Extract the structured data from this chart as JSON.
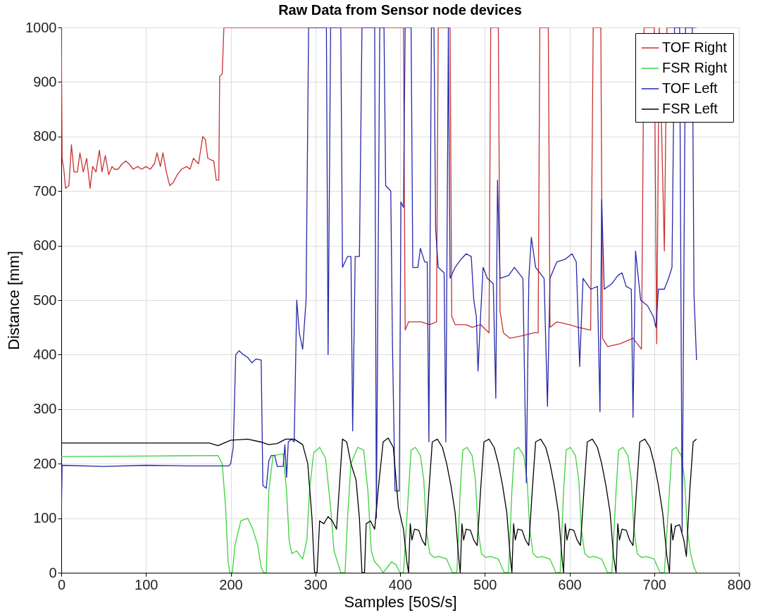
{
  "chart_data": {
    "type": "line",
    "title": "Raw Data from Sensor node devices",
    "xlabel": "Samples [50S/s]",
    "ylabel": "Distance [mm]",
    "xlim": [
      0,
      800
    ],
    "ylim": [
      0,
      1000
    ],
    "xticks": [
      0,
      100,
      200,
      300,
      400,
      500,
      600,
      700,
      800
    ],
    "yticks": [
      0,
      100,
      200,
      300,
      400,
      500,
      600,
      700,
      800,
      900,
      1000
    ],
    "grid": true,
    "legend": "top right",
    "marker": "none",
    "line_style": "solid",
    "series": [
      {
        "name": "TOF Right",
        "color": "#c83232",
        "x": [
          0,
          1,
          3,
          5,
          9,
          12,
          15,
          19,
          22,
          26,
          30,
          34,
          37,
          41,
          45,
          48,
          52,
          56,
          60,
          63,
          67,
          72,
          76,
          80,
          85,
          90,
          95,
          100,
          105,
          110,
          113,
          117,
          120,
          124,
          128,
          132,
          137,
          142,
          148,
          152,
          156,
          162,
          167,
          170,
          173,
          180,
          183,
          186,
          187,
          190,
          192,
          404,
          406,
          410,
          425,
          435,
          443,
          445,
          459,
          461,
          465,
          478,
          485,
          495,
          505,
          507,
          516,
          518,
          522,
          530,
          545,
          558,
          563,
          565,
          575,
          577,
          585,
          600,
          610,
          625,
          628,
          637,
          639,
          645,
          660,
          675,
          685,
          688,
          700,
          703,
          706,
          712,
          715,
          750
        ],
        "values": [
          1000,
          760,
          740,
          705,
          710,
          785,
          735,
          735,
          770,
          735,
          760,
          705,
          745,
          735,
          775,
          735,
          765,
          730,
          745,
          740,
          740,
          750,
          755,
          750,
          740,
          745,
          740,
          745,
          740,
          750,
          770,
          745,
          770,
          735,
          710,
          715,
          730,
          740,
          745,
          740,
          760,
          750,
          800,
          795,
          760,
          755,
          720,
          720,
          910,
          915,
          1000,
          1000,
          445,
          460,
          460,
          455,
          460,
          1000,
          1000,
          470,
          455,
          455,
          450,
          455,
          440,
          1000,
          1000,
          480,
          440,
          430,
          435,
          440,
          440,
          1000,
          1000,
          450,
          460,
          455,
          450,
          445,
          1000,
          1000,
          430,
          415,
          420,
          430,
          410,
          1000,
          1000,
          420,
          1000,
          590,
          1000,
          1000
        ]
      },
      {
        "name": "FSR Right",
        "color": "#3cd23c",
        "x": [
          0,
          100,
          185,
          190,
          194,
          197,
          199,
          202,
          205,
          212,
          220,
          226,
          232,
          236,
          239,
          242,
          245,
          250,
          262,
          266,
          269,
          272,
          278,
          285,
          290,
          293,
          298,
          305,
          312,
          318,
          322,
          326,
          330,
          335,
          338,
          342,
          350,
          357,
          362,
          366,
          370,
          376,
          380,
          385,
          390,
          395,
          400,
          404,
          410,
          413,
          418,
          424,
          428,
          431,
          435,
          440,
          446,
          455,
          462,
          467,
          471,
          474,
          479,
          485,
          489,
          492,
          496,
          501,
          507,
          516,
          523,
          528,
          532,
          535,
          540,
          546,
          550,
          553,
          557,
          562,
          568,
          577,
          584,
          589,
          593,
          596,
          601,
          607,
          611,
          614,
          618,
          623,
          629,
          638,
          645,
          650,
          655,
          658,
          663,
          669,
          673,
          676,
          680,
          685,
          691,
          700,
          707,
          712,
          718,
          721,
          726,
          732,
          736,
          739,
          743,
          747,
          750
        ],
        "values": [
          213,
          214,
          215,
          200,
          120,
          20,
          0,
          0,
          50,
          95,
          100,
          80,
          50,
          10,
          0,
          0,
          150,
          215,
          218,
          150,
          60,
          35,
          40,
          25,
          60,
          150,
          220,
          230,
          210,
          120,
          40,
          20,
          0,
          0,
          100,
          200,
          230,
          225,
          150,
          40,
          20,
          10,
          0,
          10,
          20,
          15,
          0,
          0,
          150,
          225,
          230,
          215,
          170,
          80,
          35,
          28,
          30,
          25,
          0,
          0,
          150,
          225,
          230,
          215,
          170,
          80,
          35,
          28,
          30,
          25,
          0,
          0,
          150,
          225,
          230,
          215,
          170,
          80,
          35,
          28,
          30,
          25,
          0,
          0,
          150,
          225,
          230,
          215,
          170,
          80,
          35,
          28,
          30,
          25,
          0,
          0,
          150,
          225,
          230,
          215,
          170,
          80,
          35,
          28,
          30,
          25,
          0,
          0,
          150,
          225,
          230,
          215,
          170,
          80,
          35,
          10,
          0
        ]
      },
      {
        "name": "TOF Left",
        "color": "#2828aa",
        "x": [
          0,
          1,
          50,
          100,
          150,
          198,
          200,
          203,
          206,
          210,
          215,
          220,
          225,
          230,
          236,
          238,
          242,
          245,
          248,
          252,
          255,
          262,
          264,
          266,
          268,
          272,
          275,
          278,
          281,
          285,
          289,
          292,
          313,
          315,
          318,
          330,
          332,
          338,
          342,
          344,
          347,
          352,
          355,
          370,
          372,
          376,
          381,
          383,
          389,
          391,
          394,
          399,
          401,
          404,
          406,
          413,
          415,
          421,
          424,
          429,
          432,
          434,
          437,
          440,
          442,
          445,
          452,
          454,
          457,
          459,
          465,
          472,
          478,
          484,
          487,
          490,
          492,
          495,
          498,
          503,
          510,
          513,
          515,
          518,
          528,
          535,
          545,
          549,
          552,
          555,
          560,
          570,
          574,
          577,
          585,
          595,
          603,
          608,
          612,
          616,
          625,
          633,
          636,
          638,
          641,
          650,
          657,
          662,
          667,
          673,
          675,
          678,
          684,
          692,
          699,
          702,
          705,
          712,
          717,
          721,
          724,
          730,
          733,
          737,
          745,
          747,
          750
        ],
        "values": [
          100,
          197,
          195,
          197,
          196,
          196,
          200,
          230,
          400,
          407,
          400,
          395,
          385,
          392,
          390,
          160,
          155,
          205,
          215,
          215,
          195,
          195,
          235,
          175,
          240,
          245,
          240,
          500,
          440,
          410,
          500,
          1000,
          1000,
          400,
          1000,
          1000,
          560,
          580,
          580,
          260,
          580,
          580,
          1000,
          1000,
          100,
          1000,
          1000,
          710,
          700,
          420,
          150,
          150,
          680,
          670,
          1000,
          1000,
          560,
          560,
          595,
          570,
          570,
          240,
          1000,
          1000,
          630,
          560,
          550,
          240,
          1000,
          540,
          560,
          575,
          585,
          580,
          500,
          470,
          370,
          470,
          560,
          540,
          530,
          320,
          720,
          540,
          545,
          560,
          540,
          165,
          540,
          615,
          560,
          540,
          305,
          540,
          570,
          575,
          585,
          570,
          378,
          540,
          520,
          525,
          295,
          685,
          520,
          530,
          545,
          550,
          525,
          520,
          285,
          590,
          500,
          490,
          470,
          450,
          520,
          520,
          540,
          560,
          1000,
          1000,
          75,
          1000,
          1000,
          510,
          390
        ]
      },
      {
        "name": "FSR Left",
        "color": "#000000",
        "x": [
          0,
          100,
          175,
          185,
          200,
          220,
          235,
          245,
          255,
          265,
          275,
          285,
          291,
          296,
          299,
          302,
          305,
          310,
          315,
          320,
          325,
          328,
          332,
          337,
          342,
          348,
          352,
          355,
          358,
          360,
          365,
          370,
          374,
          380,
          386,
          392,
          398,
          404,
          408,
          410,
          412,
          414,
          417,
          422,
          426,
          430,
          434,
          438,
          444,
          450,
          455,
          460,
          465,
          469,
          471,
          473,
          475,
          478,
          483,
          487,
          491,
          495,
          499,
          505,
          511,
          516,
          521,
          526,
          530,
          532,
          534,
          536,
          539,
          544,
          548,
          552,
          556,
          560,
          566,
          572,
          577,
          582,
          587,
          591,
          593,
          595,
          597,
          600,
          605,
          609,
          613,
          617,
          621,
          627,
          633,
          638,
          643,
          648,
          652,
          655,
          657,
          659,
          662,
          667,
          671,
          675,
          679,
          683,
          689,
          695,
          700,
          705,
          710,
          715,
          718,
          720,
          722,
          725,
          730,
          735,
          738,
          742,
          746,
          750
        ],
        "values": [
          238,
          238,
          238,
          233,
          243,
          245,
          240,
          235,
          237,
          245,
          245,
          235,
          200,
          100,
          0,
          0,
          95,
          90,
          103,
          95,
          80,
          150,
          245,
          240,
          200,
          170,
          100,
          0,
          0,
          90,
          95,
          80,
          150,
          240,
          247,
          230,
          120,
          80,
          20,
          0,
          90,
          60,
          80,
          78,
          60,
          50,
          150,
          240,
          245,
          230,
          200,
          160,
          110,
          30,
          0,
          90,
          60,
          80,
          78,
          60,
          50,
          150,
          240,
          245,
          230,
          200,
          160,
          110,
          30,
          0,
          90,
          60,
          80,
          78,
          60,
          50,
          150,
          240,
          245,
          230,
          200,
          160,
          110,
          30,
          0,
          90,
          60,
          80,
          78,
          60,
          50,
          150,
          240,
          245,
          230,
          200,
          160,
          110,
          30,
          0,
          90,
          60,
          80,
          78,
          60,
          50,
          150,
          240,
          245,
          230,
          200,
          160,
          110,
          30,
          0,
          90,
          60,
          85,
          88,
          60,
          30,
          150,
          240,
          245
        ]
      }
    ]
  }
}
